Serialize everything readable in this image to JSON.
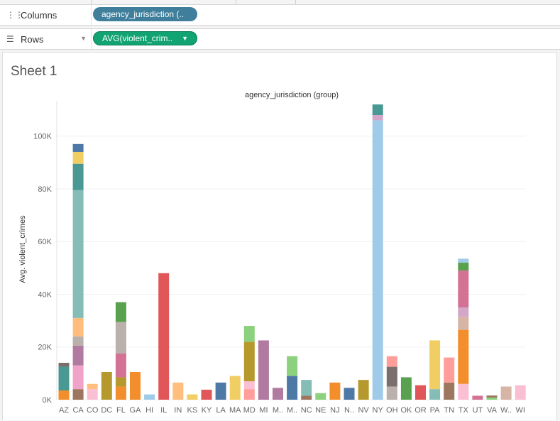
{
  "shelves": {
    "columns": {
      "label": "Columns",
      "pill": "agency_jurisdiction (.."
    },
    "rows": {
      "label": "Rows",
      "pill": "AVG(violent_crim.."
    }
  },
  "sheet": {
    "title": "Sheet 1"
  },
  "chart_data": {
    "type": "bar",
    "stacked": true,
    "title": "agency_jurisdiction (group)",
    "xlabel": "",
    "ylabel": "Avg. violent_crimes",
    "ylim": [
      0,
      115000
    ],
    "yticks": [
      0,
      20000,
      40000,
      60000,
      80000,
      100000
    ],
    "ytick_labels": [
      "0K",
      "20K",
      "40K",
      "60K",
      "80K",
      "100K"
    ],
    "grid": true,
    "categories": [
      "AZ",
      "CA",
      "CO",
      "DC",
      "FL",
      "GA",
      "HI",
      "IL",
      "IN",
      "KS",
      "KY",
      "LA",
      "MA",
      "MD",
      "MI",
      "M..",
      "M..",
      "NC",
      "NE",
      "NJ",
      "N..",
      "NV",
      "NY",
      "OH",
      "OK",
      "OR",
      "PA",
      "TN",
      "TX",
      "UT",
      "VA",
      "W..",
      "WI"
    ],
    "stacks": [
      [
        [
          3500,
          "#f28e2b"
        ],
        [
          9000,
          "#499894"
        ],
        [
          1500,
          "#79706e"
        ]
      ],
      [
        [
          4000,
          "#9d7660"
        ],
        [
          9000,
          "#f1a2c8"
        ],
        [
          7500,
          "#b07aa1"
        ],
        [
          3500,
          "#bab0ac"
        ],
        [
          7000,
          "#ffbe7d"
        ],
        [
          48500,
          "#86bcb6"
        ],
        [
          10000,
          "#499894"
        ],
        [
          4500,
          "#f1ce63"
        ],
        [
          3000,
          "#4e79a7"
        ]
      ],
      [
        [
          4000,
          "#fabfd2"
        ],
        [
          2000,
          "#ffbe7d"
        ]
      ],
      [
        [
          10500,
          "#b6992d"
        ]
      ],
      [
        [
          5000,
          "#f28e2b"
        ],
        [
          3500,
          "#b6992d"
        ],
        [
          9000,
          "#d37295"
        ],
        [
          12000,
          "#bab0ac"
        ],
        [
          7500,
          "#59a14f"
        ]
      ],
      [
        [
          10500,
          "#f28e2b"
        ]
      ],
      [
        [
          2000,
          "#a0cbe8"
        ]
      ],
      [
        [
          48000,
          "#e15759"
        ]
      ],
      [
        [
          6500,
          "#ffbe7d"
        ]
      ],
      [
        [
          2000,
          "#f1ce63"
        ]
      ],
      [
        [
          3800,
          "#e15759"
        ]
      ],
      [
        [
          6500,
          "#4e79a7"
        ]
      ],
      [
        [
          9000,
          "#f1ce63"
        ]
      ],
      [
        [
          4000,
          "#ff9d9a"
        ],
        [
          3000,
          "#fabfd2"
        ],
        [
          15000,
          "#b6992d"
        ],
        [
          6000,
          "#8cd17d"
        ]
      ],
      [
        [
          22500,
          "#b07aa1"
        ]
      ],
      [
        [
          4500,
          "#b07aa1"
        ]
      ],
      [
        [
          9000,
          "#4e79a7"
        ],
        [
          7500,
          "#8cd17d"
        ]
      ],
      [
        [
          1500,
          "#9d7660"
        ],
        [
          6000,
          "#86bcb6"
        ]
      ],
      [
        [
          2500,
          "#8cd17d"
        ]
      ],
      [
        [
          6500,
          "#f28e2b"
        ]
      ],
      [
        [
          4500,
          "#4e79a7"
        ]
      ],
      [
        [
          7500,
          "#b6992d"
        ]
      ],
      [
        [
          106000,
          "#a0cbe8"
        ],
        [
          2000,
          "#d4a6c8"
        ],
        [
          4000,
          "#499894"
        ]
      ],
      [
        [
          5000,
          "#bab0ac"
        ],
        [
          7500,
          "#79706e"
        ],
        [
          4000,
          "#ff9d9a"
        ]
      ],
      [
        [
          8500,
          "#59a14f"
        ]
      ],
      [
        [
          5500,
          "#e15759"
        ]
      ],
      [
        [
          4000,
          "#86bcb6"
        ],
        [
          18500,
          "#f1ce63"
        ]
      ],
      [
        [
          6500,
          "#9d7660"
        ],
        [
          9500,
          "#ff9d9a"
        ]
      ],
      [
        [
          6000,
          "#fabfd2"
        ],
        [
          20500,
          "#f28e2b"
        ],
        [
          5000,
          "#d7b5a6"
        ],
        [
          3500,
          "#d4a6c8"
        ],
        [
          14000,
          "#d37295"
        ],
        [
          3000,
          "#59a14f"
        ],
        [
          1500,
          "#a0cbe8"
        ]
      ],
      [
        [
          1500,
          "#d37295"
        ]
      ],
      [
        [
          800,
          "#8cd17d"
        ],
        [
          800,
          "#9d7660"
        ]
      ],
      [
        [
          5000,
          "#d7b5a6"
        ]
      ],
      [
        [
          5500,
          "#fabfd2"
        ]
      ]
    ]
  }
}
